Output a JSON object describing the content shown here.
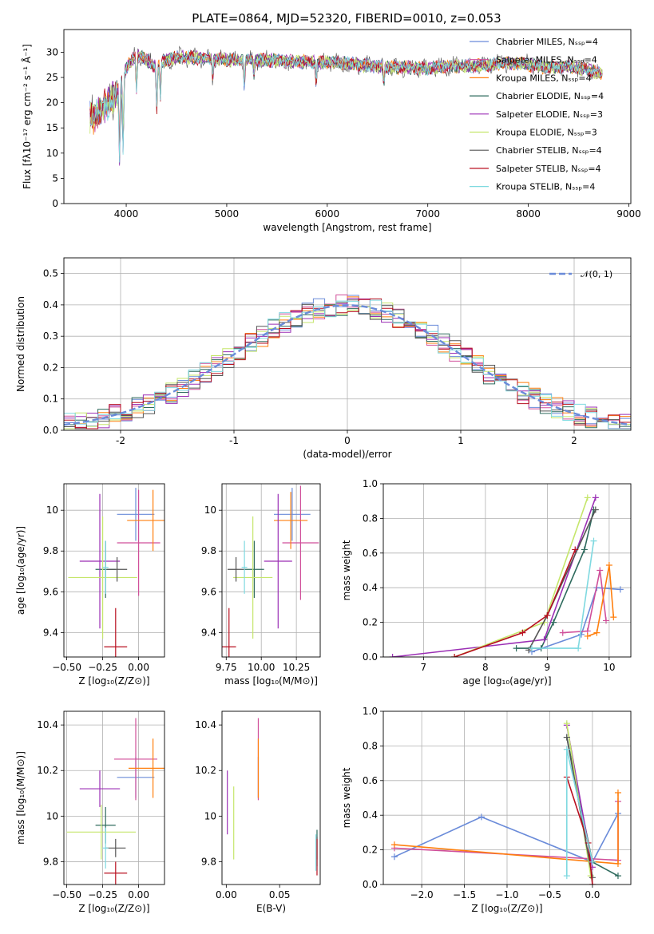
{
  "figure_title": "PLATE=0864, MJD=52320, FIBERID=0010, z=0.053",
  "colors": [
    "#6a8bd9",
    "#d04f9a",
    "#ff7f0e",
    "#2f6b5e",
    "#9b2fb5",
    "#c5e66b",
    "#555555",
    "#b80f1f",
    "#7fd9e0"
  ],
  "chart_data": [
    {
      "type": "line",
      "id": "spectrum",
      "title": "PLATE=0864, MJD=52320, FIBERID=0010, z=0.053",
      "xlabel": "wavelength [Angstrom, rest frame]",
      "ylabel": "Flux [fλ10⁻¹⁷ erg cm⁻² s⁻¹ Å⁻¹]",
      "xlim": [
        3380,
        9020
      ],
      "ylim": [
        0,
        34.5
      ],
      "xticks": [
        4000,
        5000,
        6000,
        7000,
        8000,
        9000
      ],
      "yticks": [
        0,
        5,
        10,
        15,
        20,
        25,
        30
      ],
      "grid": false,
      "legend": "top-right",
      "legend_entries": [
        {
          "label": "Chabrier MILES, Nₛₛₚ=4",
          "color": "#6a8bd9"
        },
        {
          "label": "Salpeter MILES, Nₛₛₚ=4",
          "color": "#d04f9a"
        },
        {
          "label": "Kroupa MILES, Nₛₛₚ=4",
          "color": "#ff7f0e"
        },
        {
          "label": "Chabrier ELODIE, Nₛₛₚ=4",
          "color": "#2f6b5e"
        },
        {
          "label": "Salpeter ELODIE, Nₛₛₚ=3",
          "color": "#9b2fb5"
        },
        {
          "label": "Kroupa ELODIE, Nₛₛₚ=3",
          "color": "#c5e66b"
        },
        {
          "label": "Chabrier STELIB, Nₛₛₚ=4",
          "color": "#555555"
        },
        {
          "label": "Salpeter STELIB, Nₛₛₚ=4",
          "color": "#b80f1f"
        },
        {
          "label": "Kroupa STELIB, Nₛₛₚ=4",
          "color": "#7fd9e0"
        }
      ],
      "continuum": {
        "x": [
          3650,
          3750,
          3850,
          3950,
          4000,
          4100,
          4200,
          4300,
          4400,
          4500,
          4600,
          4800,
          5000,
          5200,
          5400,
          5600,
          5800,
          6000,
          6200,
          6400,
          6600,
          6800,
          7000,
          7200,
          7400,
          7600,
          7800,
          8000,
          8200,
          8400,
          8600,
          8750
        ],
        "y": [
          17,
          18.5,
          20.5,
          23,
          27,
          29.5,
          28.5,
          27,
          28.5,
          29,
          29,
          28.8,
          28.5,
          28.5,
          28.4,
          28.3,
          28,
          28,
          27.8,
          27.3,
          27,
          27,
          26.8,
          27.2,
          27.3,
          27.5,
          28,
          27.5,
          26.8,
          27.3,
          26.5,
          25.5
        ]
      },
      "absorption_lines": {
        "x": [
          3934,
          3969,
          4102,
          4304,
          4340,
          4861,
          5175,
          5270,
          5890,
          6563
        ],
        "depth": [
          14,
          13,
          7,
          9,
          7,
          4,
          5,
          3,
          4,
          3
        ]
      }
    },
    {
      "type": "step",
      "id": "residuals",
      "xlabel": "(data-model)/error",
      "ylabel": "Normed distribution",
      "xlim": [
        -2.5,
        2.5
      ],
      "ylim": [
        0,
        0.55
      ],
      "xticks": [
        -2,
        -1,
        0,
        1,
        2
      ],
      "yticks": [
        0.0,
        0.1,
        0.2,
        0.3,
        0.4,
        0.5
      ],
      "grid": true,
      "legend": "top-right",
      "normal_label": "𝒩(0, 1)",
      "normal_color": "#6a8bd9",
      "bin_width": 0.1
    },
    {
      "type": "errorbar",
      "id": "age-vs-Z",
      "xlabel": "Z [log₁₀(Z/Z⊙)]",
      "ylabel": "age  [log₁₀(age/yr)]",
      "xlim": [
        -0.52,
        0.18
      ],
      "ylim": [
        9.28,
        10.13
      ],
      "xticks": [
        -0.5,
        -0.25,
        0.0
      ],
      "xticklabels": [
        "−0.50",
        "−0.25",
        "0.00"
      ],
      "yticks": [
        9.4,
        9.6,
        9.8,
        10.0
      ],
      "grid": true,
      "points": [
        {
          "x": -0.02,
          "xerr": 0.13,
          "y": 9.98,
          "yerr": 0.13,
          "color": "#6a8bd9"
        },
        {
          "x": 0.0,
          "xerr": 0.15,
          "y": 9.84,
          "yerr": 0.26,
          "color": "#d04f9a"
        },
        {
          "x": 0.1,
          "xerr": 0.18,
          "y": 9.95,
          "yerr": 0.15,
          "color": "#ff7f0e"
        },
        {
          "x": -0.23,
          "xerr": 0.07,
          "y": 9.71,
          "yerr": 0.14,
          "color": "#2f6b5e"
        },
        {
          "x": -0.27,
          "xerr": 0.14,
          "y": 9.75,
          "yerr": 0.33,
          "color": "#9b2fb5"
        },
        {
          "x": -0.25,
          "xerr": 0.24,
          "y": 9.67,
          "yerr": 0.3,
          "color": "#c5e66b"
        },
        {
          "x": -0.15,
          "xerr": 0.07,
          "y": 9.71,
          "yerr": 0.06,
          "color": "#555555"
        },
        {
          "x": -0.16,
          "xerr": 0.08,
          "y": 9.33,
          "yerr": 0.19,
          "color": "#b80f1f"
        },
        {
          "x": -0.23,
          "xerr": 0.02,
          "y": 9.72,
          "yerr": 0.13,
          "color": "#7fd9e0"
        }
      ]
    },
    {
      "type": "errorbar",
      "id": "age-vs-mass",
      "xlabel": "mass [log₁₀(M/M⊙)]",
      "ylabel": "",
      "xlim": [
        9.72,
        10.42
      ],
      "ylim": [
        9.28,
        10.13
      ],
      "xticks": [
        9.75,
        10.0,
        10.25
      ],
      "xticklabels": [
        "9.75",
        "10.00",
        "10.25"
      ],
      "yticks": [
        9.4,
        9.6,
        9.8,
        10.0
      ],
      "grid": true,
      "points": [
        {
          "x": 10.22,
          "xerr": 0.13,
          "y": 9.98,
          "yerr": 0.13,
          "color": "#6a8bd9"
        },
        {
          "x": 10.28,
          "xerr": 0.13,
          "y": 9.84,
          "yerr": 0.28,
          "color": "#d04f9a"
        },
        {
          "x": 10.21,
          "xerr": 0.12,
          "y": 9.95,
          "yerr": 0.14,
          "color": "#ff7f0e"
        },
        {
          "x": 9.95,
          "xerr": 0.07,
          "y": 9.71,
          "yerr": 0.14,
          "color": "#2f6b5e"
        },
        {
          "x": 10.12,
          "xerr": 0.1,
          "y": 9.75,
          "yerr": 0.33,
          "color": "#9b2fb5"
        },
        {
          "x": 9.94,
          "xerr": 0.14,
          "y": 9.67,
          "yerr": 0.3,
          "color": "#c5e66b"
        },
        {
          "x": 9.82,
          "xerr": 0.06,
          "y": 9.71,
          "yerr": 0.06,
          "color": "#555555"
        },
        {
          "x": 9.77,
          "xerr": 0.05,
          "y": 9.33,
          "yerr": 0.19,
          "color": "#b80f1f"
        },
        {
          "x": 9.88,
          "xerr": 0.02,
          "y": 9.72,
          "yerr": 0.13,
          "color": "#7fd9e0"
        }
      ]
    },
    {
      "type": "line",
      "id": "massweight-vs-age",
      "xlabel": "age  [log₁₀(age/yr)]",
      "ylabel": "mass weight",
      "xlim": [
        6.35,
        10.35
      ],
      "ylim": [
        0,
        1.0
      ],
      "xticks": [
        7,
        8,
        9,
        10
      ],
      "yticks": [
        0.0,
        0.2,
        0.4,
        0.6,
        0.8,
        1.0
      ],
      "grid": true,
      "series": [
        {
          "color": "#6a8bd9",
          "x": [
            8.75,
            9.55,
            9.8,
            10.18
          ],
          "y": [
            0.03,
            0.13,
            0.4,
            0.39
          ]
        },
        {
          "color": "#d04f9a",
          "x": [
            9.25,
            9.65,
            9.85,
            9.95
          ],
          "y": [
            0.14,
            0.15,
            0.5,
            0.21
          ]
        },
        {
          "color": "#ff7f0e",
          "x": [
            9.65,
            9.8,
            10.0,
            10.07
          ],
          "y": [
            0.12,
            0.14,
            0.53,
            0.23
          ]
        },
        {
          "color": "#2f6b5e",
          "x": [
            8.5,
            8.9,
            9.1,
            9.6,
            9.75
          ],
          "y": [
            0.05,
            0.05,
            0.2,
            0.62,
            0.85
          ]
        },
        {
          "color": "#9b2fb5",
          "x": [
            6.5,
            8.95,
            9.78
          ],
          "y": [
            0.0,
            0.1,
            0.92
          ]
        },
        {
          "color": "#c5e66b",
          "x": [
            7.5,
            8.95,
            9.65
          ],
          "y": [
            0.0,
            0.2,
            0.92
          ]
        },
        {
          "color": "#555555",
          "x": [
            8.7,
            9.0,
            9.78
          ],
          "y": [
            0.04,
            0.24,
            0.85
          ]
        },
        {
          "color": "#b80f1f",
          "x": [
            7.5,
            8.6,
            9.0,
            9.45
          ],
          "y": [
            0.0,
            0.14,
            0.24,
            0.62
          ]
        },
        {
          "color": "#7fd9e0",
          "x": [
            8.75,
            9.5,
            9.75
          ],
          "y": [
            0.05,
            0.05,
            0.67
          ]
        }
      ]
    },
    {
      "type": "errorbar",
      "id": "mass-vs-Z",
      "xlabel": "Z [log₁₀(Z/Z⊙)]",
      "ylabel": "mass [log₁₀(M/M⊙)]",
      "xlim": [
        -0.52,
        0.18
      ],
      "ylim": [
        9.7,
        10.46
      ],
      "xticks": [
        -0.5,
        -0.25,
        0.0
      ],
      "xticklabels": [
        "−0.50",
        "−0.25",
        "0.00"
      ],
      "yticks": [
        9.8,
        10.0,
        10.2,
        10.4
      ],
      "grid": true,
      "points": [
        {
          "x": -0.02,
          "xerr": 0.13,
          "y": 10.17,
          "yerr": 0.09,
          "color": "#6a8bd9"
        },
        {
          "x": -0.02,
          "xerr": 0.15,
          "y": 10.25,
          "yerr": 0.18,
          "color": "#d04f9a"
        },
        {
          "x": 0.1,
          "xerr": 0.17,
          "y": 10.21,
          "yerr": 0.13,
          "color": "#ff7f0e"
        },
        {
          "x": -0.23,
          "xerr": 0.07,
          "y": 9.96,
          "yerr": 0.08,
          "color": "#2f6b5e"
        },
        {
          "x": -0.27,
          "xerr": 0.14,
          "y": 10.12,
          "yerr": 0.08,
          "color": "#9b2fb5"
        },
        {
          "x": -0.26,
          "xerr": 0.24,
          "y": 9.93,
          "yerr": 0.12,
          "color": "#c5e66b"
        },
        {
          "x": -0.16,
          "xerr": 0.07,
          "y": 9.86,
          "yerr": 0.04,
          "color": "#555555"
        },
        {
          "x": -0.16,
          "xerr": 0.08,
          "y": 9.75,
          "yerr": 0.05,
          "color": "#b80f1f"
        },
        {
          "x": -0.23,
          "xerr": 0.02,
          "y": 9.86,
          "yerr": 0.09,
          "color": "#7fd9e0"
        }
      ]
    },
    {
      "type": "errorbar",
      "id": "mass-vs-ebv",
      "xlabel": "E(B-V)",
      "ylabel": "",
      "xlim": [
        -0.004,
        0.088
      ],
      "ylim": [
        9.7,
        10.46
      ],
      "xticks": [
        0.0,
        0.05
      ],
      "xticklabels": [
        "0.00",
        "0.05"
      ],
      "yticks": [
        9.8,
        10.0,
        10.2,
        10.4
      ],
      "grid": false,
      "points": [
        {
          "x": 0.03,
          "y": 10.17,
          "yerr": 0.09,
          "color": "#6a8bd9"
        },
        {
          "x": 0.03,
          "y": 10.25,
          "yerr": 0.18,
          "color": "#d04f9a"
        },
        {
          "x": 0.03,
          "y": 10.21,
          "yerr": 0.13,
          "color": "#ff7f0e"
        },
        {
          "x": 0.085,
          "y": 9.86,
          "yerr": 0.08,
          "color": "#2f6b5e"
        },
        {
          "x": 0.001,
          "y": 10.06,
          "yerr": 0.14,
          "color": "#9b2fb5"
        },
        {
          "x": 0.007,
          "y": 9.97,
          "yerr": 0.16,
          "color": "#c5e66b"
        },
        {
          "x": 0.085,
          "y": 9.86,
          "yerr": 0.05,
          "color": "#555555"
        },
        {
          "x": 0.085,
          "y": 9.82,
          "yerr": 0.08,
          "color": "#b80f1f"
        },
        {
          "x": 0.084,
          "y": 9.84,
          "yerr": 0.08,
          "color": "#7fd9e0"
        }
      ]
    },
    {
      "type": "line",
      "id": "massweight-vs-Z",
      "xlabel": "Z [log₁₀(Z/Z⊙)]",
      "ylabel": "mass weight",
      "xlim": [
        -2.45,
        0.45
      ],
      "ylim": [
        0,
        1.0
      ],
      "xticks": [
        -2.0,
        -1.5,
        -1.0,
        -0.5,
        0.0
      ],
      "xticklabels": [
        "−2.0",
        "−1.5",
        "−1.0",
        "−0.5",
        "0.0"
      ],
      "yticks": [
        0.0,
        0.2,
        0.4,
        0.6,
        0.8,
        1.0
      ],
      "grid": true,
      "series": [
        {
          "color": "#6a8bd9",
          "x": [
            -2.32,
            -1.3,
            0.0,
            0.3
          ],
          "y": [
            0.16,
            0.39,
            0.13,
            0.41
          ]
        },
        {
          "color": "#d04f9a",
          "x": [
            -2.32,
            0.3,
            0.3
          ],
          "y": [
            0.21,
            0.14,
            0.48
          ]
        },
        {
          "color": "#ff7f0e",
          "x": [
            -2.32,
            0.3,
            0.3
          ],
          "y": [
            0.23,
            0.12,
            0.53
          ]
        },
        {
          "color": "#2f6b5e",
          "x": [
            -0.3,
            0.0,
            0.3
          ],
          "y": [
            0.85,
            0.13,
            0.05
          ]
        },
        {
          "color": "#9b2fb5",
          "x": [
            -0.3,
            0.0
          ],
          "y": [
            0.92,
            0.1
          ]
        },
        {
          "color": "#c5e66b",
          "x": [
            -0.3,
            -0.02
          ],
          "y": [
            0.93,
            0.05
          ]
        },
        {
          "color": "#555555",
          "x": [
            -0.3,
            0.0
          ],
          "y": [
            0.85,
            0.04
          ]
        },
        {
          "color": "#b80f1f",
          "x": [
            -0.3,
            -0.05,
            0.0
          ],
          "y": [
            0.62,
            0.24,
            0.0
          ]
        },
        {
          "color": "#7fd9e0",
          "x": [
            -0.3,
            -0.3,
            0.0
          ],
          "y": [
            0.05,
            0.78,
            0.13
          ]
        }
      ]
    }
  ]
}
